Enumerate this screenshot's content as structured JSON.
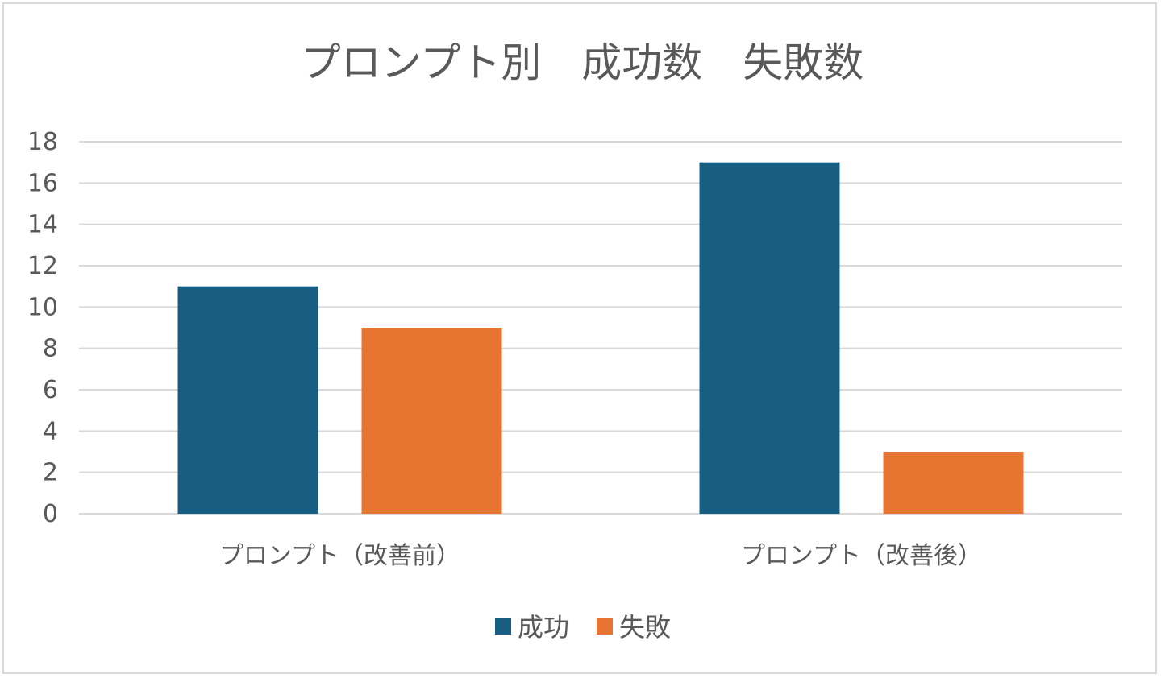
{
  "chart_data": {
    "type": "bar",
    "title": "プロンプト別　成功数　失敗数",
    "categories": [
      "プロンプト（改善前）",
      "プロンプト（改善後）"
    ],
    "series": [
      {
        "name": "成功",
        "values": [
          11,
          17
        ],
        "color": "#175e82"
      },
      {
        "name": "失敗",
        "values": [
          9,
          3
        ],
        "color": "#e87431"
      }
    ],
    "ylim": [
      0,
      18
    ],
    "yticks": [
      "0",
      "2",
      "4",
      "6",
      "8",
      "10",
      "12",
      "14",
      "16",
      "18"
    ],
    "grid": true,
    "legend": "bottom"
  }
}
